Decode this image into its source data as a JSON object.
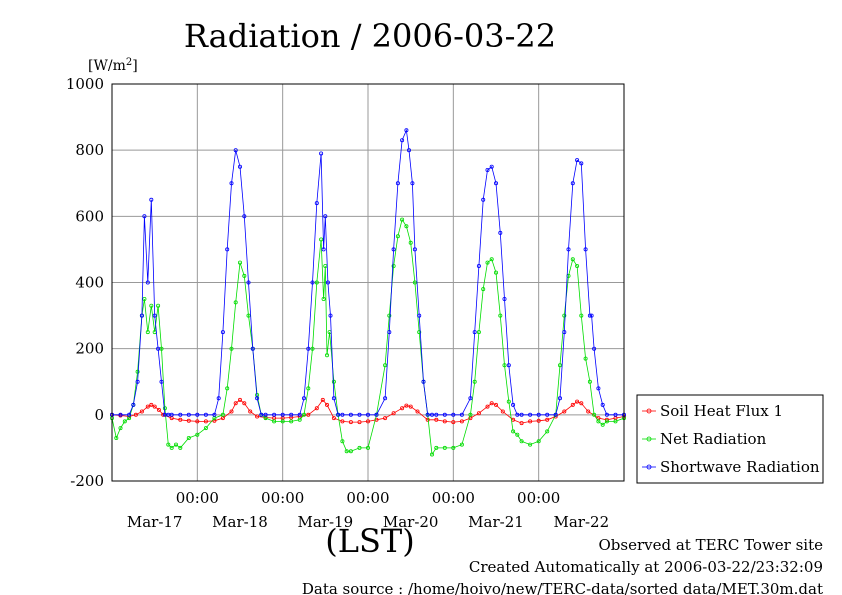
{
  "chart_data": {
    "type": "line",
    "title": "Radiation / 2006-03-22",
    "ylabel_unit": "[W/m",
    "ylabel_sup": "2",
    "ylabel_close": "]",
    "xlabel": "(LST)",
    "ylim": [
      -200,
      1000
    ],
    "y_ticks": [
      "1000",
      "800",
      "600",
      "400",
      "200",
      "0",
      "-200"
    ],
    "xlim_days": [
      0,
      6
    ],
    "time_ticks": [
      "00:00",
      "00:00",
      "00:00",
      "00:00",
      "00:00"
    ],
    "date_labels": [
      "Mar-17",
      "Mar-18",
      "Mar-19",
      "Mar-20",
      "Mar-21",
      "Mar-22"
    ],
    "grid": true,
    "legend_position": "right",
    "series": [
      {
        "name": "Soil Heat Flux 1",
        "color": "#ff0000",
        "x": [
          0,
          0.1,
          0.2,
          0.28,
          0.35,
          0.42,
          0.46,
          0.5,
          0.55,
          0.6,
          0.7,
          0.8,
          0.9,
          1.0,
          1.1,
          1.2,
          1.3,
          1.4,
          1.45,
          1.5,
          1.55,
          1.62,
          1.7,
          1.8,
          1.9,
          2.0,
          2.1,
          2.2,
          2.3,
          2.4,
          2.47,
          2.52,
          2.6,
          2.7,
          2.8,
          2.9,
          3.0,
          3.1,
          3.2,
          3.3,
          3.4,
          3.45,
          3.5,
          3.58,
          3.7,
          3.8,
          3.9,
          4.0,
          4.1,
          4.2,
          4.3,
          4.4,
          4.45,
          4.5,
          4.58,
          4.7,
          4.8,
          4.9,
          5.0,
          5.1,
          5.2,
          5.3,
          5.4,
          5.45,
          5.5,
          5.58,
          5.7,
          5.8,
          5.9,
          6.0
        ],
        "y": [
          0,
          -2,
          -5,
          0,
          10,
          25,
          30,
          25,
          15,
          0,
          -10,
          -15,
          -18,
          -20,
          -20,
          -18,
          -10,
          10,
          35,
          45,
          35,
          10,
          -5,
          -8,
          -10,
          -10,
          -8,
          -5,
          0,
          20,
          45,
          30,
          -10,
          -20,
          -22,
          -22,
          -20,
          -15,
          -10,
          5,
          20,
          28,
          25,
          10,
          -15,
          -15,
          -20,
          -22,
          -20,
          -10,
          5,
          25,
          35,
          30,
          10,
          -15,
          -25,
          -20,
          -18,
          -15,
          -5,
          10,
          30,
          40,
          35,
          10,
          -10,
          -15,
          -10,
          -5
        ]
      },
      {
        "name": "Net Radiation",
        "color": "#00dd00",
        "x": [
          0,
          0.05,
          0.1,
          0.15,
          0.2,
          0.25,
          0.3,
          0.35,
          0.38,
          0.42,
          0.46,
          0.5,
          0.54,
          0.58,
          0.62,
          0.66,
          0.7,
          0.75,
          0.8,
          0.9,
          1.0,
          1.1,
          1.2,
          1.3,
          1.35,
          1.4,
          1.45,
          1.5,
          1.55,
          1.6,
          1.65,
          1.7,
          1.75,
          1.8,
          1.9,
          2.0,
          2.1,
          2.2,
          2.25,
          2.3,
          2.35,
          2.4,
          2.45,
          2.48,
          2.5,
          2.52,
          2.55,
          2.6,
          2.65,
          2.7,
          2.75,
          2.8,
          2.9,
          3.0,
          3.1,
          3.2,
          3.25,
          3.3,
          3.35,
          3.4,
          3.45,
          3.5,
          3.55,
          3.6,
          3.65,
          3.7,
          3.75,
          3.8,
          3.9,
          4.0,
          4.1,
          4.2,
          4.25,
          4.3,
          4.35,
          4.4,
          4.45,
          4.5,
          4.55,
          4.6,
          4.65,
          4.7,
          4.75,
          4.8,
          4.9,
          5.0,
          5.1,
          5.2,
          5.25,
          5.3,
          5.35,
          5.4,
          5.45,
          5.5,
          5.55,
          5.6,
          5.65,
          5.7,
          5.75,
          5.8,
          5.9,
          6.0
        ],
        "y": [
          -10,
          -70,
          -40,
          -20,
          -10,
          30,
          130,
          300,
          350,
          250,
          330,
          250,
          330,
          200,
          20,
          -90,
          -100,
          -90,
          -100,
          -70,
          -60,
          -40,
          -10,
          0,
          80,
          200,
          340,
          460,
          420,
          300,
          200,
          60,
          0,
          -10,
          -20,
          -20,
          -20,
          -15,
          0,
          80,
          200,
          400,
          530,
          350,
          450,
          180,
          250,
          100,
          0,
          -80,
          -110,
          -110,
          -100,
          -100,
          0,
          150,
          300,
          450,
          540,
          590,
          570,
          520,
          400,
          250,
          100,
          0,
          -120,
          -100,
          -100,
          -100,
          -90,
          0,
          100,
          250,
          380,
          460,
          470,
          430,
          300,
          150,
          40,
          -50,
          -60,
          -80,
          -90,
          -80,
          -50,
          0,
          150,
          300,
          420,
          470,
          450,
          300,
          170,
          100,
          0,
          -20,
          -30,
          -20,
          -20,
          -10
        ]
      },
      {
        "name": "Shortwave Radiation",
        "color": "#0000ff",
        "x": [
          0,
          0.1,
          0.2,
          0.25,
          0.3,
          0.35,
          0.38,
          0.42,
          0.46,
          0.5,
          0.54,
          0.58,
          0.62,
          0.66,
          0.7,
          0.8,
          0.9,
          1.0,
          1.1,
          1.2,
          1.25,
          1.3,
          1.35,
          1.4,
          1.45,
          1.5,
          1.55,
          1.6,
          1.65,
          1.7,
          1.75,
          1.8,
          1.9,
          2.0,
          2.1,
          2.2,
          2.25,
          2.3,
          2.35,
          2.4,
          2.45,
          2.48,
          2.5,
          2.53,
          2.56,
          2.6,
          2.65,
          2.7,
          2.8,
          2.9,
          3.0,
          3.1,
          3.2,
          3.25,
          3.3,
          3.35,
          3.4,
          3.45,
          3.48,
          3.52,
          3.55,
          3.6,
          3.65,
          3.7,
          3.75,
          3.8,
          3.9,
          4.0,
          4.1,
          4.2,
          4.25,
          4.3,
          4.35,
          4.4,
          4.45,
          4.5,
          4.55,
          4.6,
          4.65,
          4.7,
          4.75,
          4.8,
          4.9,
          5.0,
          5.1,
          5.2,
          5.25,
          5.3,
          5.35,
          5.4,
          5.45,
          5.5,
          5.55,
          5.6,
          5.62,
          5.65,
          5.7,
          5.75,
          5.8,
          5.9,
          6.0
        ],
        "y": [
          0,
          0,
          0,
          30,
          100,
          300,
          600,
          400,
          650,
          300,
          200,
          100,
          0,
          0,
          0,
          0,
          0,
          0,
          0,
          0,
          50,
          250,
          500,
          700,
          800,
          750,
          600,
          400,
          200,
          50,
          0,
          0,
          0,
          0,
          0,
          0,
          50,
          200,
          400,
          640,
          790,
          500,
          600,
          400,
          300,
          50,
          0,
          0,
          0,
          0,
          0,
          0,
          50,
          250,
          500,
          700,
          830,
          860,
          800,
          700,
          500,
          300,
          100,
          0,
          0,
          0,
          0,
          0,
          0,
          50,
          250,
          450,
          650,
          740,
          750,
          700,
          550,
          350,
          150,
          30,
          0,
          0,
          0,
          0,
          0,
          0,
          50,
          250,
          500,
          700,
          770,
          760,
          500,
          300,
          300,
          200,
          80,
          30,
          0,
          0,
          0
        ]
      }
    ]
  },
  "footer": {
    "line1": "Observed at TERC Tower site",
    "line2": "Created Automatically at 2006-03-22/23:32:09",
    "line3": "Data source : /home/hoivo/new/TERC-data/sorted  data/MET.30m.dat"
  }
}
